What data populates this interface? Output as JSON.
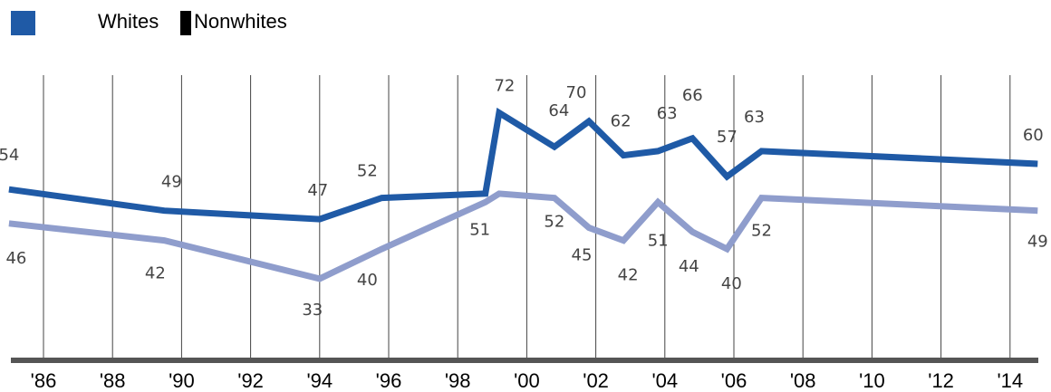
{
  "chart_data": {
    "type": "line",
    "title": "",
    "xlabel": "",
    "ylabel": "",
    "x": [
      1985,
      1989.5,
      1994,
      1995.8,
      1998.8,
      1999.2,
      2000.8,
      2001.8,
      2002.8,
      2003.8,
      2004.8,
      2005.8,
      2006.8,
      2014.8
    ],
    "tick_values": [
      1986,
      1988,
      1990,
      1992,
      1994,
      1996,
      1998,
      2000,
      2002,
      2004,
      2006,
      2008,
      2010,
      2012,
      2014
    ],
    "tick_labels": [
      "'86",
      "'88",
      "'90",
      "'92",
      "'94",
      "'96",
      "'98",
      "'00",
      "'02",
      "'04",
      "'06",
      "'08",
      "'10",
      "'12",
      "'14"
    ],
    "xlim": [
      1985,
      2015
    ],
    "ylim": [
      25,
      80
    ],
    "grid": true,
    "legend_placement": "top-left",
    "series": [
      {
        "name": "Whites",
        "color": "#1f5aa6",
        "values": [
          54,
          49,
          47,
          52,
          53,
          72,
          64,
          70,
          62,
          63,
          66,
          57,
          63,
          60
        ],
        "labels": [
          "54",
          "49",
          "47",
          "52",
          "",
          "72",
          "64",
          "70",
          "62",
          "63",
          "66",
          "57",
          "63",
          "60"
        ]
      },
      {
        "name": "Nonwhites",
        "color": "#8f9dcc",
        "values": [
          46,
          42,
          33,
          40,
          51,
          53,
          52,
          45,
          42,
          51,
          44,
          40,
          52,
          49
        ],
        "labels": [
          "46",
          "42",
          "33",
          "40",
          "51",
          "",
          "52",
          "45",
          "42",
          "51",
          "44",
          "40",
          "52",
          "49"
        ]
      }
    ]
  },
  "legend": {
    "items": [
      {
        "label": "Whites",
        "swatch_color": "#1f5aa6"
      },
      {
        "label": "Nonwhites",
        "swatch_color": "#000000"
      }
    ]
  }
}
